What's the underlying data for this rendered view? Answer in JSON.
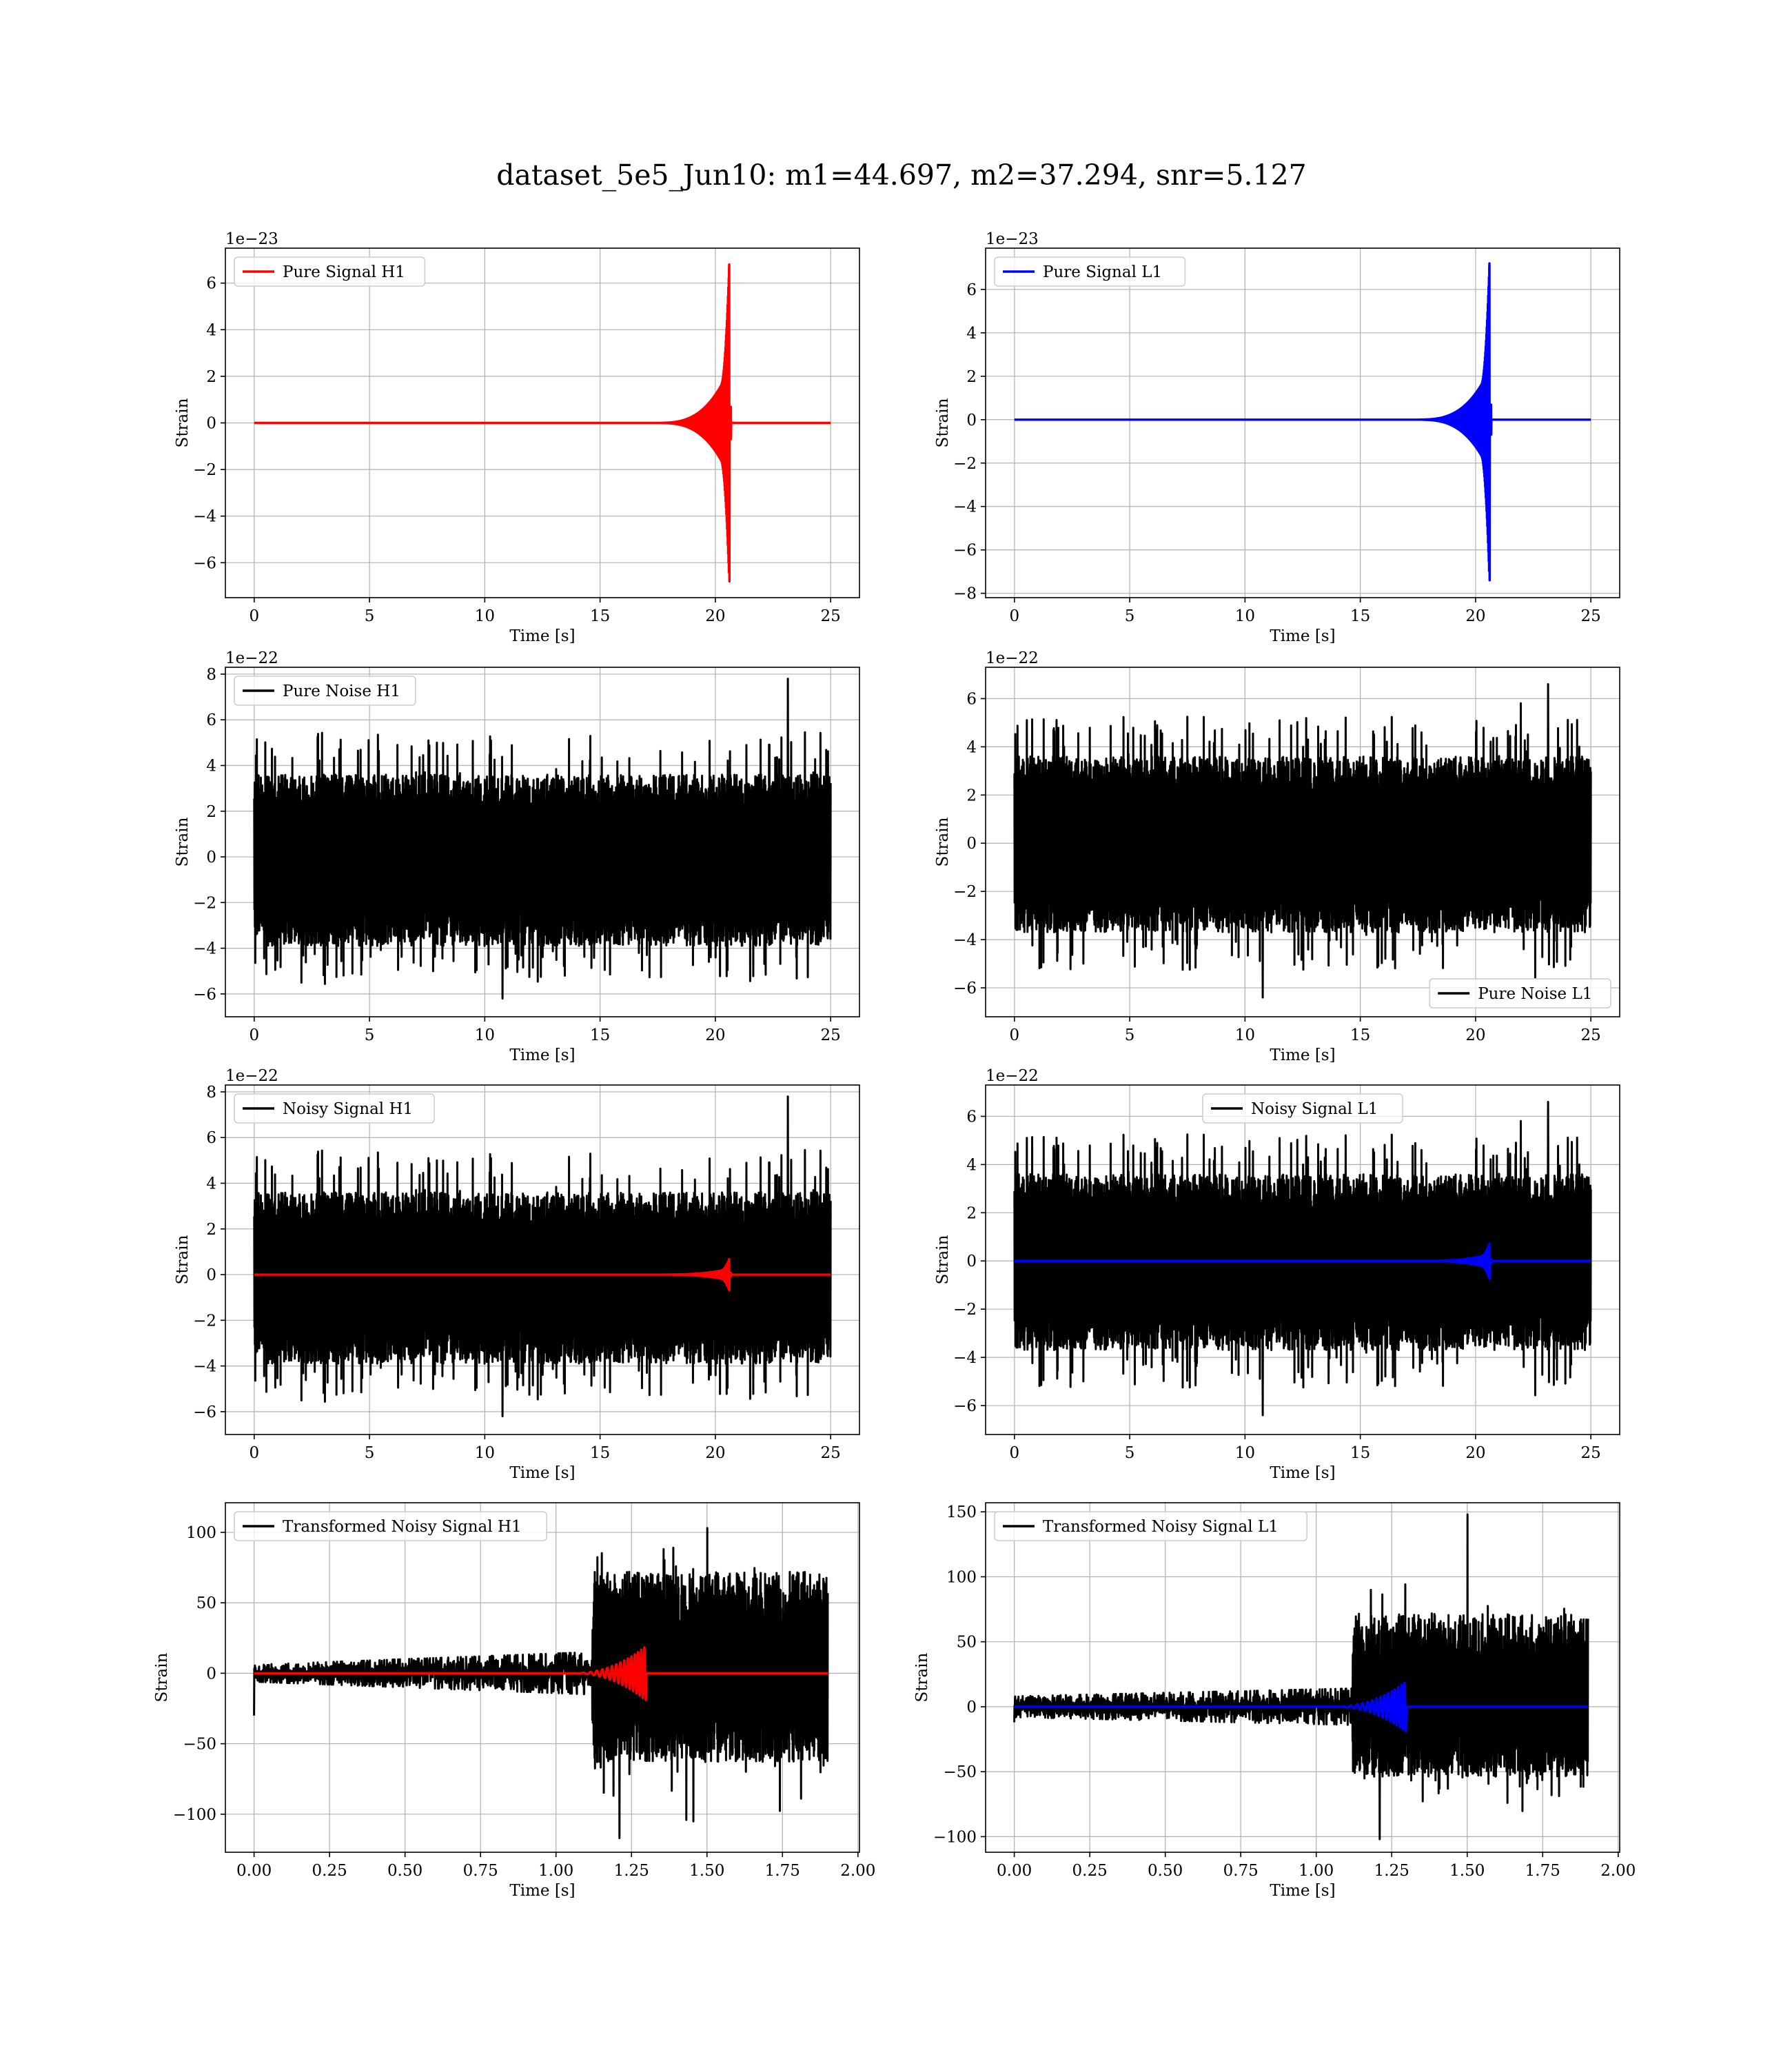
{
  "figure": {
    "suptitle": "dataset_5e5_Jun10: m1=44.697, m2=37.294, snr=5.127"
  },
  "chart_data": [
    {
      "type": "line",
      "title": "",
      "xlabel": "Time [s]",
      "ylabel": "Strain",
      "offset_label": "1e−23",
      "xlim": [
        -1.25,
        26.25
      ],
      "ylim": [
        -7.5,
        7.5
      ],
      "xticks": [
        0,
        5,
        10,
        15,
        20,
        25
      ],
      "xtick_labels": [
        "0",
        "5",
        "10",
        "15",
        "20",
        "25"
      ],
      "yticks": [
        -6,
        -4,
        -2,
        0,
        2,
        4,
        6
      ],
      "ytick_labels": [
        "−6",
        "−4",
        "−2",
        "0",
        "2",
        "4",
        "6"
      ],
      "grid": true,
      "legend": {
        "placement": "upper-left",
        "entries": [
          {
            "label": "Pure Signal H1",
            "color": "#ff0000"
          }
        ]
      },
      "series": [
        {
          "name": "Pure Signal H1",
          "color": "#ff0000",
          "kind": "chirp",
          "x_range": [
            0,
            25
          ],
          "merger_x": 20.6,
          "onset_x": 18.8,
          "inspiral_amp": 2.3,
          "peak_pos": 6.8,
          "peak_neg": -6.8
        }
      ]
    },
    {
      "type": "line",
      "title": "",
      "xlabel": "Time [s]",
      "ylabel": "Strain",
      "offset_label": "1e−23",
      "xlim": [
        -1.25,
        26.25
      ],
      "ylim": [
        -8.2,
        7.9
      ],
      "xticks": [
        0,
        5,
        10,
        15,
        20,
        25
      ],
      "xtick_labels": [
        "0",
        "5",
        "10",
        "15",
        "20",
        "25"
      ],
      "yticks": [
        -8,
        -6,
        -4,
        -2,
        0,
        2,
        4,
        6
      ],
      "ytick_labels": [
        "−8",
        "−6",
        "−4",
        "−2",
        "0",
        "2",
        "4",
        "6"
      ],
      "grid": true,
      "legend": {
        "placement": "upper-left",
        "entries": [
          {
            "label": "Pure Signal L1",
            "color": "#0000ff"
          }
        ]
      },
      "series": [
        {
          "name": "Pure Signal L1",
          "color": "#0000ff",
          "kind": "chirp",
          "x_range": [
            0,
            25
          ],
          "merger_x": 20.6,
          "onset_x": 18.8,
          "inspiral_amp": 2.3,
          "peak_pos": 7.2,
          "peak_neg": -7.4
        }
      ]
    },
    {
      "type": "line",
      "title": "",
      "xlabel": "Time [s]",
      "ylabel": "Strain",
      "offset_label": "1e−22",
      "xlim": [
        -1.25,
        26.25
      ],
      "ylim": [
        -7.0,
        8.3
      ],
      "xticks": [
        0,
        5,
        10,
        15,
        20,
        25
      ],
      "xtick_labels": [
        "0",
        "5",
        "10",
        "15",
        "20",
        "25"
      ],
      "yticks": [
        -6,
        -4,
        -2,
        0,
        2,
        4,
        6,
        8
      ],
      "ytick_labels": [
        "−6",
        "−4",
        "−2",
        "0",
        "2",
        "4",
        "6",
        "8"
      ],
      "grid": true,
      "legend": {
        "placement": "upper-left",
        "entries": [
          {
            "label": "Pure Noise H1",
            "color": "#000000"
          }
        ]
      },
      "series": [
        {
          "name": "Pure Noise H1",
          "color": "#000000",
          "kind": "noise",
          "x_range": [
            0,
            25
          ],
          "base_lo": -3.9,
          "base_hi": 3.6,
          "spike_hi": 5.2,
          "spike_lo": -5.3,
          "max": 7.8,
          "min": -6.2,
          "seed": 11
        }
      ]
    },
    {
      "type": "line",
      "title": "",
      "xlabel": "Time [s]",
      "ylabel": "Strain",
      "offset_label": "1e−22",
      "xlim": [
        -1.25,
        26.25
      ],
      "ylim": [
        -7.2,
        7.3
      ],
      "xticks": [
        0,
        5,
        10,
        15,
        20,
        25
      ],
      "xtick_labels": [
        "0",
        "5",
        "10",
        "15",
        "20",
        "25"
      ],
      "yticks": [
        -6,
        -4,
        -2,
        0,
        2,
        4,
        6
      ],
      "ytick_labels": [
        "−6",
        "−4",
        "−2",
        "0",
        "2",
        "4",
        "6"
      ],
      "grid": true,
      "legend": {
        "placement": "lower-right",
        "entries": [
          {
            "label": "Pure Noise L1",
            "color": "#000000"
          }
        ]
      },
      "series": [
        {
          "name": "Pure Noise L1",
          "color": "#000000",
          "kind": "noise",
          "x_range": [
            0,
            25
          ],
          "base_lo": -3.7,
          "base_hi": 3.6,
          "spike_hi": 5.0,
          "spike_lo": -5.0,
          "max": 6.6,
          "min": -6.4,
          "seed": 23
        }
      ]
    },
    {
      "type": "line",
      "title": "",
      "xlabel": "Time [s]",
      "ylabel": "Strain",
      "offset_label": "1e−22",
      "xlim": [
        -1.25,
        26.25
      ],
      "ylim": [
        -7.0,
        8.3
      ],
      "xticks": [
        0,
        5,
        10,
        15,
        20,
        25
      ],
      "xtick_labels": [
        "0",
        "5",
        "10",
        "15",
        "20",
        "25"
      ],
      "yticks": [
        -6,
        -4,
        -2,
        0,
        2,
        4,
        6,
        8
      ],
      "ytick_labels": [
        "−6",
        "−4",
        "−2",
        "0",
        "2",
        "4",
        "6",
        "8"
      ],
      "grid": true,
      "legend": {
        "placement": "upper-left",
        "entries": [
          {
            "label": "Noisy Signal H1",
            "color": "#000000"
          }
        ]
      },
      "series": [
        {
          "name": "Noisy Signal H1",
          "color": "#000000",
          "kind": "noise",
          "x_range": [
            0,
            25
          ],
          "base_lo": -3.9,
          "base_hi": 3.6,
          "spike_hi": 5.2,
          "spike_lo": -5.3,
          "max": 7.8,
          "min": -6.2,
          "seed": 11
        },
        {
          "color": "#ff0000",
          "kind": "chirp",
          "x_range": [
            0,
            25
          ],
          "merger_x": 20.6,
          "onset_x": 18.8,
          "inspiral_amp": 0.25,
          "peak_pos": 0.68,
          "peak_neg": -0.68
        }
      ]
    },
    {
      "type": "line",
      "title": "",
      "xlabel": "Time [s]",
      "ylabel": "Strain",
      "offset_label": "1e−22",
      "xlim": [
        -1.25,
        26.25
      ],
      "ylim": [
        -7.2,
        7.3
      ],
      "xticks": [
        0,
        5,
        10,
        15,
        20,
        25
      ],
      "xtick_labels": [
        "0",
        "5",
        "10",
        "15",
        "20",
        "25"
      ],
      "yticks": [
        -6,
        -4,
        -2,
        0,
        2,
        4,
        6
      ],
      "ytick_labels": [
        "−6",
        "−4",
        "−2",
        "0",
        "2",
        "4",
        "6"
      ],
      "grid": true,
      "legend": {
        "placement": "upper-center",
        "entries": [
          {
            "label": "Noisy Signal L1",
            "color": "#000000"
          }
        ]
      },
      "series": [
        {
          "name": "Noisy Signal L1",
          "color": "#000000",
          "kind": "noise",
          "x_range": [
            0,
            25
          ],
          "base_lo": -3.7,
          "base_hi": 3.6,
          "spike_hi": 5.0,
          "spike_lo": -5.0,
          "max": 6.6,
          "min": -6.4,
          "seed": 23
        },
        {
          "color": "#0000ff",
          "kind": "chirp",
          "x_range": [
            0,
            25
          ],
          "merger_x": 20.6,
          "onset_x": 18.8,
          "inspiral_amp": 0.28,
          "peak_pos": 0.72,
          "peak_neg": -0.74
        }
      ]
    },
    {
      "type": "line",
      "title": "",
      "xlabel": "Time [s]",
      "ylabel": "Strain",
      "offset_label": "",
      "xlim": [
        -0.095,
        2.005
      ],
      "ylim": [
        -127,
        121
      ],
      "xticks": [
        0,
        0.25,
        0.5,
        0.75,
        1.0,
        1.25,
        1.5,
        1.75,
        2.0
      ],
      "xtick_labels": [
        "0.00",
        "0.25",
        "0.50",
        "0.75",
        "1.00",
        "1.25",
        "1.50",
        "1.75",
        "2.00"
      ],
      "yticks": [
        -100,
        -50,
        0,
        50,
        100
      ],
      "ytick_labels": [
        "−100",
        "−50",
        "0",
        "50",
        "100"
      ],
      "grid": true,
      "legend": {
        "placement": "upper-left",
        "entries": [
          {
            "label": "Transformed Noisy Signal H1",
            "color": "#000000"
          }
        ]
      },
      "series": [
        {
          "name": "Transformed Noisy Signal H1",
          "color": "#000000",
          "kind": "whitened",
          "x_range": [
            0,
            1.9
          ],
          "step_x": 1.12,
          "pre_amp_start": 6,
          "pre_amp_end": 15,
          "post_lo": -70,
          "post_hi": 80,
          "max": 103,
          "min": -117,
          "first": -30,
          "seed": 5
        },
        {
          "color": "#ff0000",
          "kind": "whitened-chirp",
          "x_range": [
            0,
            1.9
          ],
          "merger_x": 1.29,
          "onset_x": 1.05,
          "peak_pos": 18,
          "peak_neg": -17
        }
      ]
    },
    {
      "type": "line",
      "title": "",
      "xlabel": "Time [s]",
      "ylabel": "Strain",
      "offset_label": "",
      "xlim": [
        -0.095,
        2.005
      ],
      "ylim": [
        -112,
        157
      ],
      "xticks": [
        0,
        0.25,
        0.5,
        0.75,
        1.0,
        1.25,
        1.5,
        1.75,
        2.0
      ],
      "xtick_labels": [
        "0.00",
        "0.25",
        "0.50",
        "0.75",
        "1.00",
        "1.25",
        "1.50",
        "1.75",
        "2.00"
      ],
      "yticks": [
        -100,
        -50,
        0,
        50,
        100,
        150
      ],
      "ytick_labels": [
        "−100",
        "−50",
        "0",
        "50",
        "100",
        "150"
      ],
      "grid": true,
      "legend": {
        "placement": "upper-left",
        "entries": [
          {
            "label": "Transformed Noisy Signal L1",
            "color": "#000000"
          }
        ]
      },
      "series": [
        {
          "name": "Transformed Noisy Signal L1",
          "color": "#000000",
          "kind": "whitened",
          "x_range": [
            0,
            1.9
          ],
          "step_x": 1.12,
          "pre_amp_start": 8,
          "pre_amp_end": 14,
          "post_lo": -60,
          "post_hi": 80,
          "max": 148,
          "min": -102,
          "first": -12,
          "seed": 9
        },
        {
          "color": "#0000ff",
          "kind": "whitened-chirp",
          "x_range": [
            0,
            1.9
          ],
          "merger_x": 1.29,
          "onset_x": 1.05,
          "peak_pos": 18,
          "peak_neg": -17
        }
      ]
    }
  ]
}
